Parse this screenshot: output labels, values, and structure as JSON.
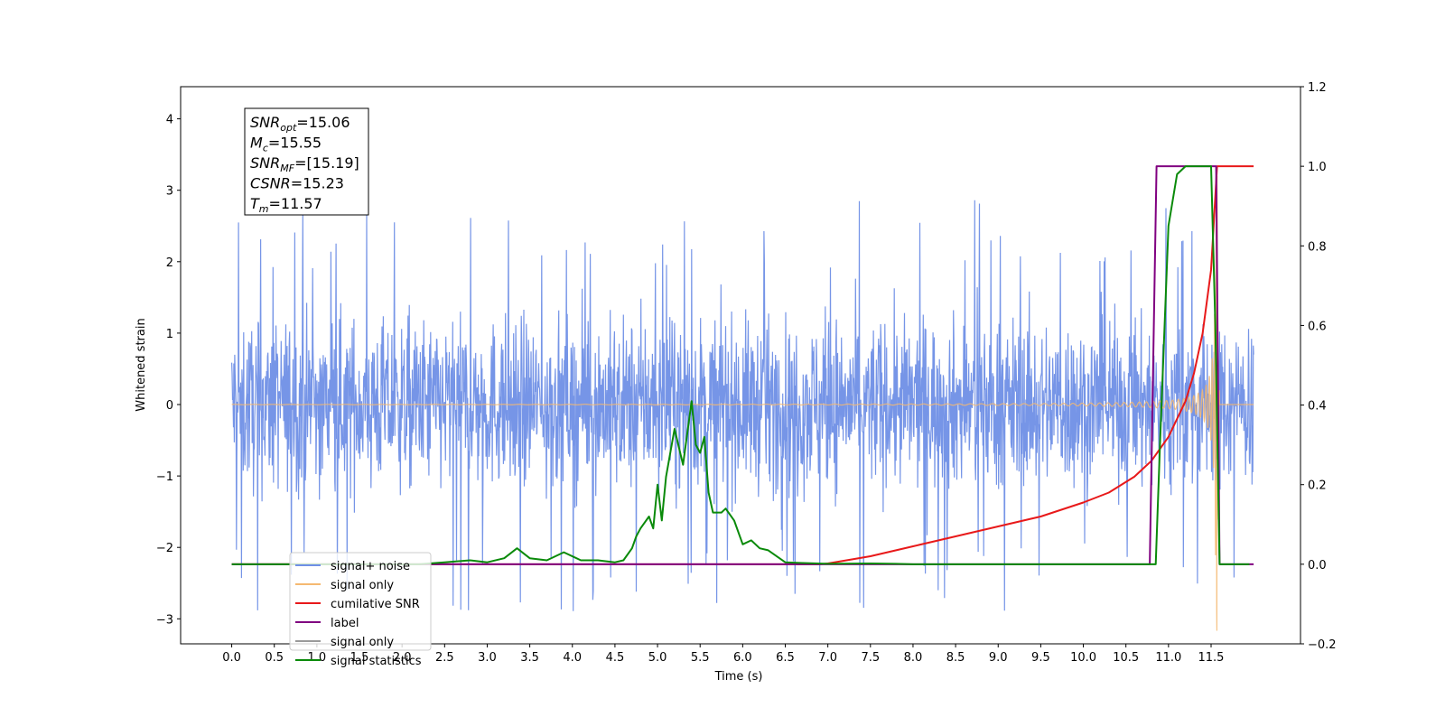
{
  "chart_data": {
    "type": "line",
    "xlabel": "Time (s)",
    "ylabel": "Whitened strain",
    "xlim": [
      -0.6,
      12.55
    ],
    "ylim": [
      -3.35,
      4.45
    ],
    "y2lim": [
      -0.2,
      1.2
    ],
    "xticks": [
      "0.0",
      "0.5",
      "1.0",
      "1.5",
      "2.0",
      "2.5",
      "3.0",
      "3.5",
      "4.0",
      "4.5",
      "5.0",
      "5.5",
      "6.0",
      "6.5",
      "7.0",
      "7.5",
      "8.0",
      "8.5",
      "9.0",
      "9.5",
      "10.0",
      "10.5",
      "11.0",
      "11.5"
    ],
    "yticks": [
      "−3",
      "−2",
      "−1",
      "0",
      "1",
      "2",
      "3",
      "4"
    ],
    "y2ticks": [
      "−0.2",
      "0.0",
      "0.2",
      "0.4",
      "0.6",
      "0.8",
      "1.0",
      "1.2"
    ],
    "grid": false,
    "legend_position": "lower-left",
    "annotation": {
      "lines": [
        {
          "sym": "SNR",
          "sub": "opt",
          "value": "=15.06"
        },
        {
          "sym": "M",
          "sub": "c",
          "value": "=15.55"
        },
        {
          "sym": "SNR",
          "sub": "MF",
          "value": "=[15.19]"
        },
        {
          "sym": "CSNR",
          "sub": "",
          "value": "=15.23"
        },
        {
          "sym": "T",
          "sub": "m",
          "value": "=11.57"
        }
      ]
    },
    "series": [
      {
        "name": "signal+ noise",
        "color": "#6f8fe6",
        "axis": "left",
        "kind": "noise",
        "x_range": [
          0.0,
          12.0
        ],
        "envelope": [
          -2.9,
          2.95
        ]
      },
      {
        "name": "signal only",
        "color": "#f5b971",
        "axis": "left",
        "kind": "chirp",
        "x_range": [
          0.0,
          12.0
        ],
        "merger_time": 11.57,
        "peak_amplitude": 3.2
      },
      {
        "name": "cumilative SNR",
        "color": "#e8191a",
        "axis": "right",
        "kind": "line",
        "x": [
          0.0,
          6.9,
          7.0,
          7.5,
          8.0,
          8.5,
          9.0,
          9.5,
          10.0,
          10.3,
          10.6,
          10.8,
          11.0,
          11.2,
          11.3,
          11.4,
          11.5,
          11.57,
          11.6,
          12.0
        ],
        "y": [
          0.0,
          0.0,
          0.002,
          0.02,
          0.045,
          0.07,
          0.095,
          0.12,
          0.155,
          0.18,
          0.22,
          0.26,
          0.32,
          0.41,
          0.48,
          0.58,
          0.74,
          1.0,
          1.0,
          1.0
        ]
      },
      {
        "name": "label",
        "color": "#800080",
        "axis": "right",
        "kind": "line",
        "x": [
          0.0,
          10.78,
          10.86,
          11.56,
          11.6,
          12.0
        ],
        "y": [
          0.0,
          0.0,
          1.0,
          1.0,
          0.0,
          0.0
        ]
      },
      {
        "name": "signal only",
        "color": "#7b7b7b",
        "axis": "right",
        "kind": "legend-only",
        "legend_label": "signal only"
      },
      {
        "name": "signal statistics",
        "color": "#0a8a0a",
        "axis": "right",
        "kind": "line",
        "x": [
          0.0,
          2.2,
          2.5,
          2.8,
          3.0,
          3.2,
          3.35,
          3.5,
          3.7,
          3.9,
          4.1,
          4.3,
          4.5,
          4.6,
          4.7,
          4.75,
          4.8,
          4.9,
          4.95,
          5.0,
          5.05,
          5.1,
          5.2,
          5.3,
          5.4,
          5.45,
          5.5,
          5.55,
          5.6,
          5.65,
          5.7,
          5.75,
          5.8,
          5.9,
          6.0,
          6.1,
          6.2,
          6.3,
          6.5,
          6.7,
          7.0,
          7.5,
          7.8,
          8.0,
          10.85,
          10.9,
          11.0,
          11.1,
          11.2,
          11.3,
          11.5,
          11.55,
          11.6,
          11.95
        ],
        "y": [
          0.0,
          0.0,
          0.005,
          0.01,
          0.005,
          0.015,
          0.04,
          0.015,
          0.01,
          0.03,
          0.01,
          0.01,
          0.005,
          0.01,
          0.04,
          0.07,
          0.09,
          0.12,
          0.09,
          0.2,
          0.11,
          0.22,
          0.34,
          0.25,
          0.41,
          0.3,
          0.28,
          0.32,
          0.18,
          0.13,
          0.13,
          0.13,
          0.14,
          0.11,
          0.05,
          0.06,
          0.04,
          0.035,
          0.005,
          0.003,
          0.001,
          0.002,
          0.001,
          0.0,
          0.0,
          0.3,
          0.85,
          0.98,
          1.0,
          1.0,
          1.0,
          0.6,
          0.0,
          0.0
        ]
      }
    ],
    "legend": [
      {
        "label": "signal+ noise",
        "color": "#6f8fe6"
      },
      {
        "label": "signal only",
        "color": "#f5b971"
      },
      {
        "label": "cumilative SNR",
        "color": "#e8191a"
      },
      {
        "label": "label",
        "color": "#800080"
      },
      {
        "label": "signal only",
        "color": "#9a9a9a"
      },
      {
        "label": "signal statistics",
        "color": "#0a8a0a"
      }
    ]
  }
}
